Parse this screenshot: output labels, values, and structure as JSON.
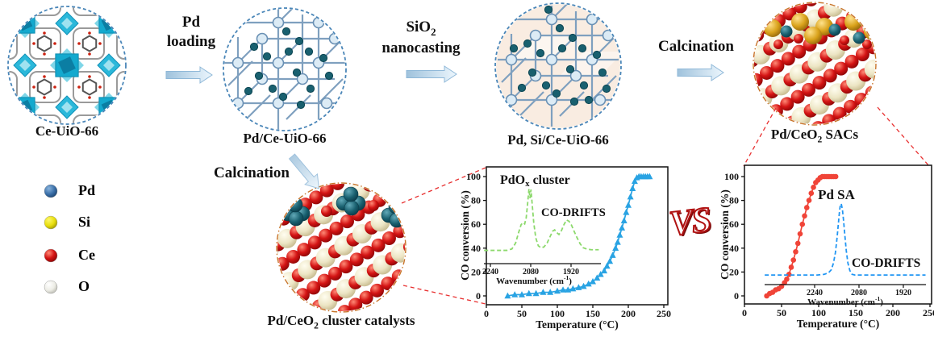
{
  "palette": {
    "circle_dash_blue": "#4a86b8",
    "circle_dash_orange": "#c8742a",
    "arrow_fill_from": "#9fc2dc",
    "arrow_fill_to": "#ecf6fd",
    "lattice_line": "#7fa0bf",
    "node_fill": "#dcebf5",
    "pd_particle": "#19606f",
    "mof_cyan": "#14a9ce",
    "connector_red": "#e83030",
    "vs_red": "#b01212",
    "ce_red": "#d41414",
    "o_cream": "#ece5c4",
    "si_gold": "#d9a21b"
  },
  "flow": {
    "step1": {
      "label": "Ce-UiO-66"
    },
    "arrow1": {
      "line1": "Pd",
      "line2": "loading"
    },
    "step2": {
      "label": "Pd/Ce-UiO-66"
    },
    "arrow2": {
      "line1_parts": [
        {
          "t": "SiO"
        },
        {
          "t": "2",
          "s": "sub"
        }
      ],
      "line2": "nanocasting"
    },
    "step3": {
      "label": "Pd, Si/Ce-UiO-66"
    },
    "arrow3": {
      "label": "Calcination"
    },
    "step4": {
      "label_parts": [
        {
          "t": "Pd/CeO"
        },
        {
          "t": "2",
          "s": "sub"
        },
        {
          "t": " SACs"
        }
      ]
    }
  },
  "branch": {
    "calcination_label": "Calcination",
    "cluster_label_parts": [
      {
        "t": "Pd/CeO"
      },
      {
        "t": "2",
        "s": "sub"
      },
      {
        "t": " cluster catalysts"
      }
    ]
  },
  "legend": {
    "items": [
      {
        "name": "Pd",
        "color": "#3a6fa8"
      },
      {
        "name": "Si",
        "color": "#f2e90c"
      },
      {
        "name": "Ce",
        "color": "#e11414"
      },
      {
        "name": "O",
        "color": "#efefea"
      }
    ]
  },
  "vs_label": "VS",
  "chart_data": [
    {
      "type": "line",
      "title_parts": [
        {
          "t": "PdO"
        },
        {
          "t": "x",
          "s": "sub"
        },
        {
          "t": " cluster"
        }
      ],
      "xlabel": "Temperature (°C)",
      "ylabel": "CO conversion (%)",
      "xlim": [
        0,
        250
      ],
      "ylim": [
        0,
        100
      ],
      "xticks": [
        0,
        50,
        100,
        150,
        200,
        250
      ],
      "yticks": [
        0,
        20,
        40,
        60,
        80,
        100
      ],
      "grid": false,
      "legend_position": "none",
      "series": [
        {
          "name": "PdOx cluster catalyst light-off",
          "color": "#29a3e3",
          "marker": "triangle",
          "x": [
            30,
            40,
            50,
            60,
            70,
            80,
            90,
            100,
            108,
            115,
            122,
            130,
            137,
            144,
            150,
            156,
            161,
            166,
            170,
            174,
            178,
            182,
            185,
            188,
            191,
            194,
            197,
            200,
            203,
            206,
            209,
            212,
            215,
            218,
            221,
            224,
            227,
            230
          ],
          "y": [
            0,
            1,
            1,
            2,
            2,
            3,
            3,
            4,
            5,
            5,
            6,
            7,
            8,
            10,
            12,
            15,
            18,
            21,
            25,
            29,
            34,
            40,
            45,
            51,
            57,
            63,
            70,
            76,
            83,
            90,
            96,
            99,
            100,
            100,
            100,
            100,
            100,
            100
          ]
        }
      ],
      "inset": {
        "label": "CO-DRIFTS",
        "xlabel_parts": [
          {
            "t": "Wavenumber (cm"
          },
          {
            "t": "-1",
            "s": "sup"
          },
          {
            "t": ")"
          }
        ],
        "xticks": [
          2240,
          2080,
          1920
        ],
        "x_reversed": true,
        "line_color": "#8cd96c",
        "line_style": "dashed",
        "x": [
          2265,
          2230,
          2200,
          2175,
          2155,
          2140,
          2128,
          2118,
          2110,
          2104,
          2098,
          2092,
          2087,
          2083,
          2079,
          2074,
          2068,
          2060,
          2050,
          2040,
          2028,
          2015,
          2003,
          1993,
          1985,
          1977,
          1968,
          1958,
          1948,
          1938,
          1928,
          1918,
          1908,
          1896,
          1884,
          1872,
          1858,
          1840,
          1810
        ],
        "y": [
          3,
          3,
          3,
          3,
          5,
          14,
          30,
          42,
          45,
          43,
          52,
          75,
          96,
          82,
          95,
          72,
          45,
          22,
          10,
          7,
          8,
          14,
          24,
          32,
          34,
          30,
          27,
          33,
          42,
          49,
          47,
          41,
          32,
          22,
          13,
          7,
          5,
          4,
          4
        ]
      }
    },
    {
      "type": "line",
      "title_parts": [
        {
          "t": "Pd SA"
        }
      ],
      "xlabel": "Temperature (°C)",
      "ylabel": "CO conversion (%)",
      "xlim": [
        0,
        250
      ],
      "ylim": [
        0,
        100
      ],
      "xticks": [
        0,
        50,
        100,
        150,
        200,
        250
      ],
      "yticks": [
        0,
        20,
        40,
        60,
        80,
        100
      ],
      "grid": false,
      "legend_position": "none",
      "series": [
        {
          "name": "Pd single-atom catalyst light-off",
          "color": "#f04438",
          "marker": "circle",
          "x": [
            30,
            34,
            38,
            42,
            46,
            50,
            54,
            57,
            60,
            63,
            66,
            69,
            72,
            75,
            78,
            81,
            84,
            87,
            90,
            93,
            96,
            99,
            102,
            105,
            108,
            111,
            114,
            117,
            120,
            123
          ],
          "y": [
            0,
            2,
            3,
            5,
            6,
            8,
            11,
            14,
            18,
            24,
            30,
            37,
            44,
            52,
            60,
            67,
            74,
            80,
            86,
            91,
            95,
            97,
            99,
            100,
            100,
            100,
            100,
            100,
            100,
            100
          ]
        }
      ],
      "inset": {
        "label": "CO-DRIFTS",
        "xlabel_parts": [
          {
            "t": "Wavenumber (cm"
          },
          {
            "t": "-1",
            "s": "sup"
          },
          {
            "t": ")"
          }
        ],
        "xticks": [
          2240,
          2080,
          1920
        ],
        "x_reversed": true,
        "line_color": "#2196f3",
        "line_style": "dashed",
        "x": [
          2420,
          2350,
          2300,
          2260,
          2230,
          2205,
          2190,
          2180,
          2172,
          2165,
          2159,
          2154,
          2150,
          2147,
          2144,
          2140,
          2136,
          2131,
          2126,
          2120,
          2113,
          2105,
          2095,
          2070,
          2030,
          1990,
          1950,
          1910,
          1870,
          1840
        ],
        "y": [
          2,
          2,
          2,
          2,
          2,
          3,
          5,
          9,
          18,
          32,
          52,
          72,
          88,
          96,
          97,
          90,
          76,
          55,
          35,
          18,
          8,
          3,
          2,
          2,
          2,
          2,
          2,
          2,
          2,
          2
        ]
      }
    }
  ]
}
